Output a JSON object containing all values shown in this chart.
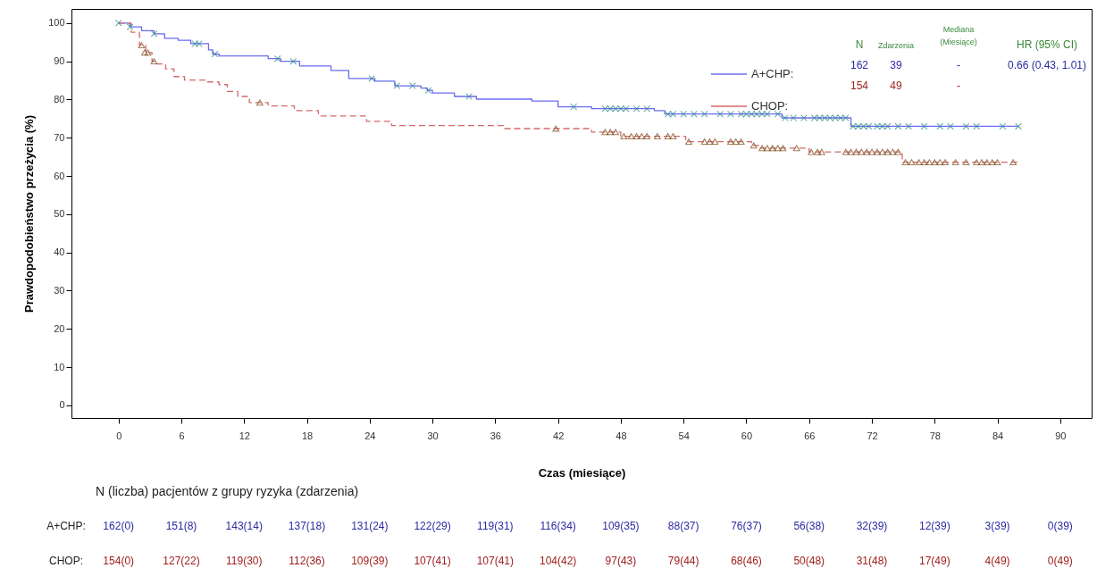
{
  "chart_data": {
    "type": "step",
    "xlabel": "Czas (miesiące)",
    "ylabel": "Prawdopodobieństwo przeżycia (%)",
    "xlim": [
      -4.5,
      93
    ],
    "ylim": [
      -3.3,
      103.7
    ],
    "xticks": [
      0,
      6,
      12,
      18,
      24,
      30,
      36,
      42,
      48,
      54,
      60,
      66,
      72,
      78,
      84,
      90
    ],
    "yticks": [
      0,
      10,
      20,
      30,
      40,
      50,
      60,
      70,
      80,
      90,
      100
    ],
    "grid": false,
    "legend": "top right",
    "series": [
      {
        "name": "A+CHP:",
        "color": "#6b6bef",
        "line_style": "solid",
        "x": [
          0,
          1.1,
          2.2,
          3.4,
          4.4,
          5.7,
          6.9,
          8.6,
          9,
          9.6,
          14.3,
          15.5,
          17.3,
          20.3,
          22,
          24.5,
          26.4,
          28.9,
          29.5,
          30,
          32.1,
          34.2,
          39.5,
          42,
          45.2,
          51.2,
          52.2,
          63.4,
          70,
          86
        ],
        "values": [
          100,
          99,
          98,
          97.2,
          96,
          95.5,
          94.6,
          93,
          91.9,
          91.4,
          90.7,
          90,
          88.8,
          87.6,
          85.5,
          84.8,
          83.6,
          83,
          82.4,
          81.7,
          80.8,
          80.1,
          79.6,
          78.1,
          77.6,
          77.1,
          76.2,
          75.2,
          73,
          73
        ]
      },
      {
        "type": "scatter",
        "color": "#2e8b8b",
        "marker": "cross",
        "x": [
          0,
          1.1,
          3.4,
          7.3,
          7.7,
          9.2,
          15.2,
          16.7,
          24.2,
          26.6,
          28.1,
          29.6,
          33.5,
          43.5,
          46.5,
          47,
          47.5,
          48,
          48.5,
          49.5,
          50.5,
          52.5,
          53,
          54,
          55,
          56,
          57.5,
          58.5,
          59.5,
          60,
          60.5,
          61,
          61.5,
          62,
          63,
          63.7,
          64.5,
          65.5,
          66.5,
          67,
          67.5,
          68,
          68.5,
          69,
          69.5,
          70.2,
          70.7,
          71.2,
          71.7,
          72.5,
          73,
          73.5,
          74.5,
          75.5,
          77,
          78.5,
          79.5,
          81,
          82,
          84.5,
          86
        ],
        "values": [
          100,
          99,
          97.2,
          94.6,
          94.6,
          91.9,
          90.7,
          90,
          85.5,
          83.6,
          83.6,
          82.4,
          80.8,
          78.1,
          77.6,
          77.6,
          77.6,
          77.6,
          77.6,
          77.6,
          77.6,
          76.2,
          76.2,
          76.2,
          76.2,
          76.2,
          76.2,
          76.2,
          76.2,
          76.2,
          76.2,
          76.2,
          76.2,
          76.2,
          76.2,
          75.2,
          75.2,
          75.2,
          75.2,
          75.2,
          75.2,
          75.2,
          75.2,
          75.2,
          75.2,
          73,
          73,
          73,
          73,
          73,
          73,
          73,
          73,
          73,
          73,
          73,
          73,
          73,
          73,
          73,
          73
        ]
      },
      {
        "name": "CHOP:",
        "color": "#d46a6a",
        "line_style": "dashed",
        "x": [
          0,
          1.2,
          2,
          2.6,
          3.2,
          3.6,
          4.5,
          5.3,
          6.3,
          8.5,
          9.6,
          10.4,
          11.4,
          12.5,
          14.3,
          16.8,
          19.1,
          23.7,
          26.1,
          36.8,
          45.2,
          48,
          54.2,
          60.5,
          61.2,
          66,
          74.9,
          86
        ],
        "values": [
          100,
          97.6,
          94.2,
          92.3,
          90,
          89.3,
          88,
          86,
          85.1,
          84.6,
          83.9,
          82.1,
          80.8,
          79.2,
          78.3,
          77.1,
          75.7,
          74.3,
          73.2,
          72.4,
          71.5,
          70.4,
          69,
          68,
          67.3,
          66.3,
          63.6,
          63.6
        ]
      },
      {
        "type": "scatter",
        "color": "#7b4a1c",
        "marker": "triangle",
        "x": [
          2.2,
          2.5,
          2.8,
          3.4,
          13.5,
          41.8,
          46.5,
          47,
          47.5,
          48.3,
          49,
          49.5,
          50,
          50.5,
          51.5,
          52.5,
          53,
          54.5,
          56,
          56.5,
          57,
          58.5,
          59,
          59.5,
          60.7,
          61.5,
          62,
          62.5,
          63,
          63.5,
          64.8,
          66.2,
          66.8,
          67.2,
          69.5,
          70,
          70.5,
          71,
          71.5,
          72,
          72.5,
          73,
          73.5,
          74,
          74.5,
          75.2,
          75.8,
          76.5,
          77,
          77.5,
          78,
          78.5,
          79,
          80,
          81,
          82,
          82.5,
          83,
          83.5,
          84,
          85.5
        ],
        "values": [
          94.2,
          92.3,
          92.3,
          90,
          79.2,
          72.4,
          71.5,
          71.5,
          71.5,
          70.4,
          70.4,
          70.4,
          70.4,
          70.4,
          70.4,
          70.4,
          70.4,
          69,
          69,
          69,
          69,
          69,
          69,
          69,
          68,
          67.3,
          67.3,
          67.3,
          67.3,
          67.3,
          67.3,
          66.3,
          66.3,
          66.3,
          66.3,
          66.3,
          66.3,
          66.3,
          66.3,
          66.3,
          66.3,
          66.3,
          66.3,
          66.3,
          66.3,
          63.6,
          63.6,
          63.6,
          63.6,
          63.6,
          63.6,
          63.6,
          63.6,
          63.6,
          63.6,
          63.6,
          63.6,
          63.6,
          63.6,
          63.6,
          63.6
        ]
      }
    ],
    "annotations": [
      "N",
      "Zdarzenia",
      "Mediana (Miesiące)",
      "HR (95% CI)",
      "162",
      "39",
      "-",
      "0.66 (0.43, 1.01)",
      "154",
      "49",
      "-",
      "N (liczba) pacjentów z grupy ryzyka (zdarzenia)",
      "A+CHP:",
      "162(0)",
      "151(8)",
      "143(14)",
      "137(18)",
      "131(24)",
      "122(29)",
      "119(31)",
      "116(34)",
      "109(35)",
      "88(37)",
      "76(37)",
      "56(38)",
      "32(39)",
      "12(39)",
      "3(39)",
      "0(39)",
      "CHOP:",
      "154(0)",
      "127(22)",
      "119(30)",
      "112(36)",
      "109(39)",
      "107(41)",
      "107(41)",
      "104(42)",
      "97(43)",
      "79(44)",
      "68(46)",
      "50(48)",
      "31(48)",
      "17(49)",
      "4(49)",
      "0(49)"
    ]
  }
}
